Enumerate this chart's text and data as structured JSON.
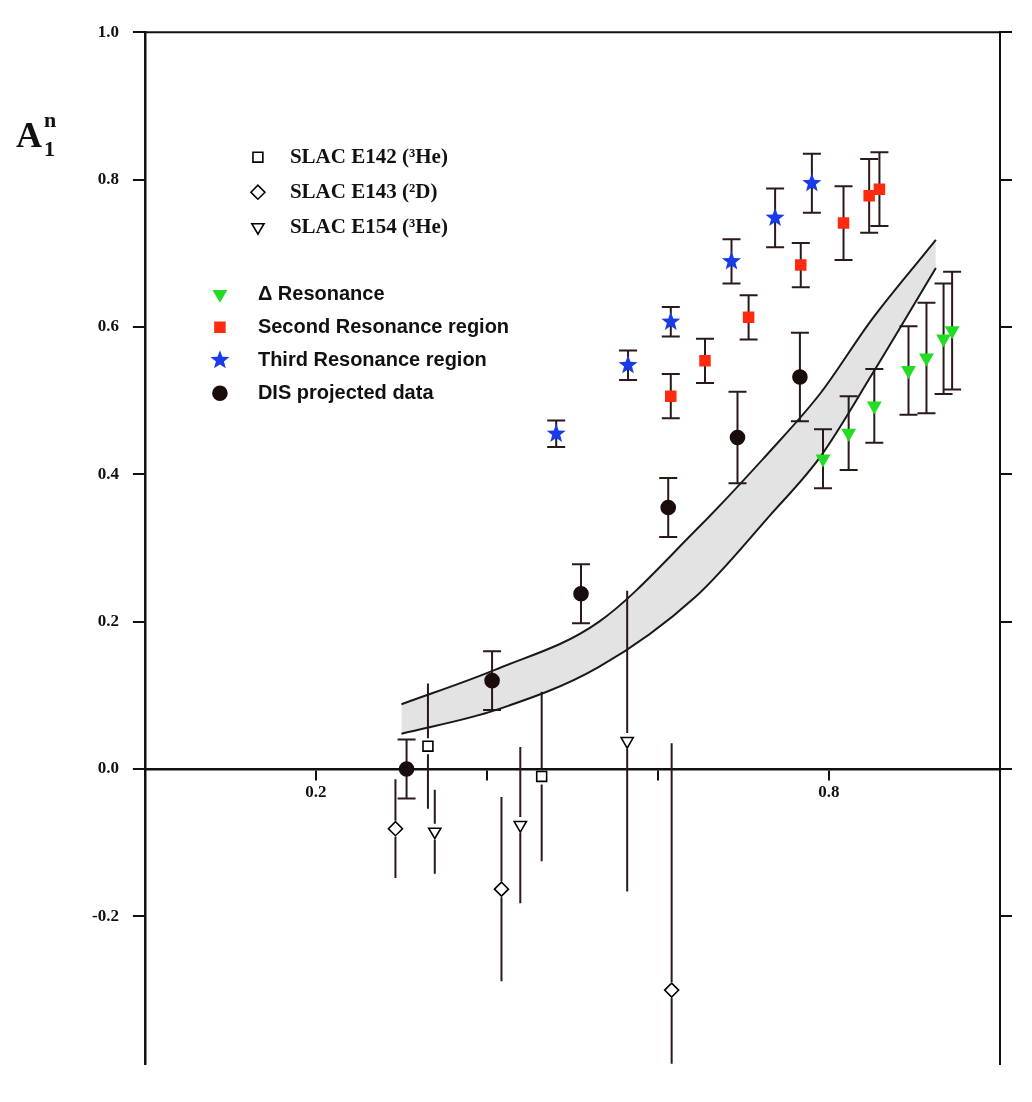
{
  "chart_data": {
    "type": "scatter",
    "ylabel": "A$_{1}$$^{n}$",
    "xlim": [
      0,
      1.0
    ],
    "ylim": [
      -0.4,
      1.0
    ],
    "xticks": [
      0.2,
      {
        "value": 0.4,
        "label": null
      },
      {
        "value": 0.6,
        "label": null
      },
      0.8
    ],
    "yticks": [
      -0.2,
      {
        "value": 0.0,
        "label": "0.0"
      },
      0.2,
      0.4,
      0.6,
      0.8,
      {
        "value": 1.0,
        "label": "1.0"
      }
    ],
    "legend": "top left",
    "series": [
      {
        "name": "SLAC E142 (³He)",
        "marker": "square",
        "color": "#000000",
        "x": [
          0.331,
          0.464
        ],
        "values": [
          0.031,
          -0.01
        ],
        "errors": [
          0.085,
          0.115
        ]
      },
      {
        "name": "SLAC E143 (²D)",
        "marker": "diamond",
        "color": "#000000",
        "x": [
          0.293,
          0.417,
          0.616
        ],
        "values": [
          -0.081,
          -0.163,
          -0.3
        ],
        "errors": [
          0.067,
          0.125,
          [
            -0.4,
            0.035
          ]
        ]
      },
      {
        "name": "SLAC E154 (³He)",
        "marker": "triangle",
        "color": "#000000",
        "x": [
          0.339,
          0.439,
          0.564
        ],
        "values": [
          -0.085,
          -0.076,
          0.038
        ],
        "errors": [
          0.057,
          0.106,
          0.204
        ]
      },
      {
        "name": "Δ Resonance",
        "marker": "triangle",
        "color": "#22dd22",
        "x": [
          0.793,
          0.823,
          0.853,
          0.893,
          0.914,
          0.934,
          0.944
        ],
        "values": [
          0.421,
          0.456,
          0.493,
          0.541,
          0.558,
          0.584,
          0.595
        ],
        "errors": [
          0.04,
          0.05,
          0.05,
          0.06,
          0.075,
          0.075,
          0.08
        ]
      },
      {
        "name": "Second Resonance region",
        "marker": "square",
        "color": "#ff2a10",
        "x": [
          0.615,
          0.655,
          0.706,
          0.767,
          0.817,
          0.847,
          0.859
        ],
        "values": [
          0.506,
          0.554,
          0.613,
          0.684,
          0.741,
          0.778,
          0.787
        ],
        "errors": [
          0.03,
          0.03,
          0.03,
          0.03,
          0.05,
          0.05,
          0.05
        ]
      },
      {
        "name": "Third Resonance region",
        "marker": "star",
        "color": "#1a3ce8",
        "x": [
          0.481,
          0.565,
          0.615,
          0.686,
          0.737,
          0.78
        ],
        "values": [
          0.455,
          0.548,
          0.607,
          0.689,
          0.748,
          0.795
        ],
        "errors": [
          0.018,
          0.02,
          0.02,
          0.03,
          0.04,
          0.04
        ]
      },
      {
        "name": "DIS projected data",
        "marker": "circle",
        "color": "#1a0c0c",
        "x": [
          0.306,
          0.406,
          0.51,
          0.612,
          0.693,
          0.766
        ],
        "values": [
          0.0,
          0.12,
          0.238,
          0.355,
          0.45,
          0.532
        ],
        "errors": [
          0.04,
          0.04,
          0.04,
          0.04,
          0.062,
          0.06
        ]
      },
      {
        "type": "area",
        "color": "#1a1a1a",
        "x": [
          0.3,
          0.41,
          0.53,
          0.645,
          0.73,
          0.79,
          0.85,
          0.925
        ],
        "values": [
          0.088,
          0.135,
          0.199,
          0.325,
          0.43,
          0.51,
          0.61,
          0.718
        ]
      },
      {
        "type": "line",
        "color": "#1a1a1a",
        "x": [
          0.3,
          0.41,
          0.53,
          0.645,
          0.73,
          0.79,
          0.85,
          0.925
        ],
        "values": [
          0.048,
          0.08,
          0.138,
          0.235,
          0.343,
          0.424,
          0.535,
          0.68
        ]
      }
    ]
  }
}
